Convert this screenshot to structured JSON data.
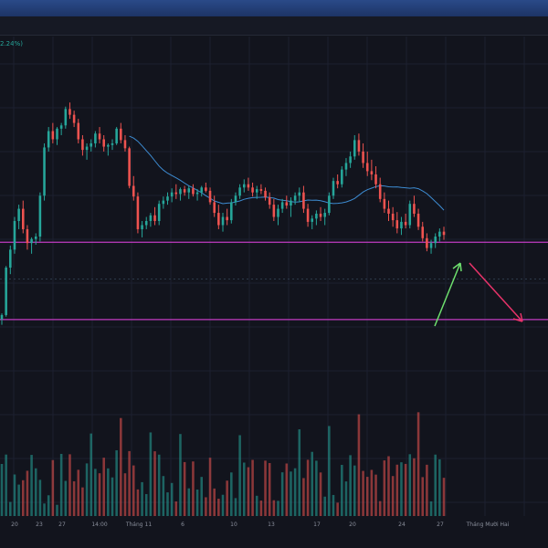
{
  "header": {
    "change_text": "2.24%)"
  },
  "colors": {
    "up": "#26a69a",
    "down": "#ef5350",
    "band": "#c13bc1",
    "ma": "#3d8bd1",
    "arrow_up": "#6ee06e",
    "arrow_down": "#e8336a"
  },
  "chart_data": {
    "type": "candlestick",
    "x_ticks": [
      "20",
      "23",
      "27",
      "14:00",
      "Tháng 11",
      "6",
      "10",
      "13",
      "17",
      "20",
      "24",
      "27",
      "Tháng Mười Hai"
    ],
    "resistance_level": "upper",
    "support_level": "lower",
    "ohlc": [
      [
        85,
        92,
        78,
        90
      ],
      [
        90,
        150,
        88,
        148
      ],
      [
        148,
        175,
        140,
        170
      ],
      [
        170,
        210,
        165,
        205
      ],
      [
        205,
        225,
        195,
        220
      ],
      [
        220,
        230,
        190,
        195
      ],
      [
        195,
        200,
        170,
        178
      ],
      [
        178,
        185,
        165,
        183
      ],
      [
        183,
        190,
        176,
        186
      ],
      [
        186,
        240,
        180,
        236
      ],
      [
        236,
        300,
        230,
        295
      ],
      [
        295,
        320,
        290,
        315
      ],
      [
        315,
        325,
        300,
        305
      ],
      [
        305,
        320,
        298,
        318
      ],
      [
        318,
        325,
        310,
        322
      ],
      [
        322,
        345,
        318,
        342
      ],
      [
        342,
        350,
        330,
        335
      ],
      [
        335,
        340,
        320,
        325
      ],
      [
        325,
        330,
        300,
        305
      ],
      [
        305,
        310,
        285,
        292
      ],
      [
        292,
        300,
        280,
        296
      ],
      [
        296,
        305,
        290,
        300
      ],
      [
        300,
        315,
        295,
        312
      ],
      [
        312,
        320,
        300,
        305
      ],
      [
        305,
        310,
        290,
        296
      ],
      [
        296,
        300,
        285,
        298
      ],
      [
        298,
        305,
        292,
        300
      ],
      [
        300,
        320,
        298,
        318
      ],
      [
        318,
        325,
        300,
        304
      ],
      [
        304,
        310,
        290,
        294
      ],
      [
        294,
        296,
        245,
        248
      ],
      [
        248,
        260,
        230,
        235
      ],
      [
        235,
        240,
        190,
        195
      ],
      [
        195,
        205,
        185,
        200
      ],
      [
        200,
        210,
        195,
        205
      ],
      [
        205,
        215,
        198,
        212
      ],
      [
        212,
        222,
        200,
        205
      ],
      [
        205,
        230,
        200,
        226
      ],
      [
        226,
        235,
        220,
        230
      ],
      [
        230,
        240,
        225,
        235
      ],
      [
        235,
        245,
        228,
        240
      ],
      [
        240,
        250,
        232,
        238
      ],
      [
        238,
        246,
        230,
        244
      ],
      [
        244,
        248,
        236,
        240
      ],
      [
        240,
        248,
        232,
        245
      ],
      [
        245,
        250,
        235,
        238
      ],
      [
        238,
        244,
        230,
        240
      ],
      [
        240,
        248,
        235,
        246
      ],
      [
        246,
        252,
        240,
        242
      ],
      [
        242,
        246,
        225,
        228
      ],
      [
        228,
        236,
        210,
        215
      ],
      [
        215,
        225,
        195,
        200
      ],
      [
        200,
        215,
        192,
        210
      ],
      [
        210,
        220,
        200,
        206
      ],
      [
        206,
        232,
        202,
        228
      ],
      [
        228,
        240,
        224,
        236
      ],
      [
        236,
        250,
        232,
        246
      ],
      [
        246,
        256,
        240,
        250
      ],
      [
        250,
        258,
        242,
        246
      ],
      [
        246,
        252,
        235,
        240
      ],
      [
        240,
        248,
        232,
        244
      ],
      [
        244,
        250,
        238,
        242
      ],
      [
        242,
        246,
        230,
        234
      ],
      [
        234,
        240,
        220,
        225
      ],
      [
        225,
        232,
        205,
        210
      ],
      [
        210,
        225,
        200,
        220
      ],
      [
        220,
        232,
        215,
        228
      ],
      [
        228,
        236,
        220,
        224
      ],
      [
        224,
        234,
        210,
        230
      ],
      [
        230,
        240,
        225,
        236
      ],
      [
        236,
        246,
        228,
        240
      ],
      [
        240,
        248,
        215,
        220
      ],
      [
        220,
        226,
        198,
        204
      ],
      [
        204,
        212,
        195,
        208
      ],
      [
        208,
        218,
        200,
        214
      ],
      [
        214,
        222,
        205,
        210
      ],
      [
        210,
        220,
        200,
        215
      ],
      [
        215,
        240,
        212,
        236
      ],
      [
        236,
        258,
        232,
        254
      ],
      [
        254,
        262,
        245,
        250
      ],
      [
        250,
        272,
        246,
        268
      ],
      [
        268,
        282,
        260,
        276
      ],
      [
        276,
        290,
        270,
        284
      ],
      [
        284,
        310,
        280,
        304
      ],
      [
        304,
        312,
        285,
        290
      ],
      [
        290,
        300,
        270,
        276
      ],
      [
        276,
        290,
        260,
        266
      ],
      [
        266,
        280,
        255,
        262
      ],
      [
        262,
        272,
        245,
        250
      ],
      [
        250,
        258,
        228,
        232
      ],
      [
        232,
        240,
        215,
        220
      ],
      [
        220,
        230,
        205,
        214
      ],
      [
        214,
        222,
        198,
        206
      ],
      [
        206,
        216,
        190,
        196
      ],
      [
        196,
        210,
        188,
        204
      ],
      [
        204,
        214,
        196,
        200
      ],
      [
        200,
        230,
        196,
        226
      ],
      [
        226,
        236,
        210,
        214
      ],
      [
        214,
        220,
        194,
        198
      ],
      [
        198,
        204,
        180,
        184
      ],
      [
        184,
        190,
        168,
        172
      ],
      [
        172,
        182,
        165,
        178
      ],
      [
        178,
        190,
        172,
        186
      ],
      [
        186,
        196,
        180,
        192
      ],
      [
        192,
        198,
        182,
        188
      ]
    ]
  }
}
